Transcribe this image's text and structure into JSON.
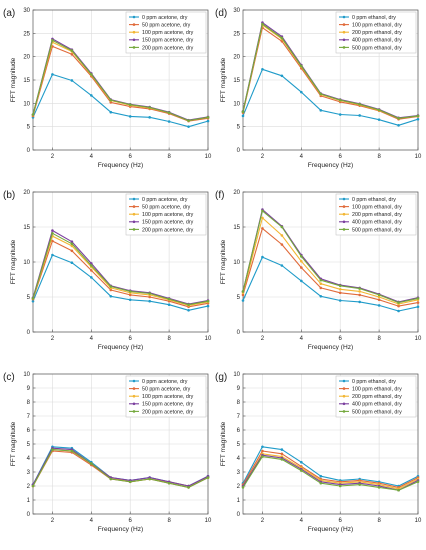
{
  "colors": {
    "s0": "#1f9bc9",
    "s1": "#e06a3a",
    "s2": "#f2b632",
    "s3": "#7b3f9e",
    "s4": "#74a83c",
    "grid": "#dcdcdc",
    "axis": "#555555"
  },
  "chart_data": [
    {
      "panel": "(a)",
      "type": "line",
      "xlabel": "Frequency (Hz)",
      "ylabel": "FFT magnitude",
      "xlim": [
        1,
        10
      ],
      "ylim": [
        0,
        30
      ],
      "xticks": [
        2,
        4,
        6,
        8,
        10
      ],
      "yticks": [
        0,
        5,
        10,
        15,
        20,
        25,
        30
      ],
      "grid": true,
      "legend": "top-right",
      "x": [
        1,
        2,
        3,
        4,
        5,
        6,
        7,
        8,
        9,
        10
      ],
      "series": [
        {
          "name": "0 ppm acetone, dry",
          "values": [
            7.0,
            16.2,
            14.9,
            11.7,
            8.1,
            7.2,
            7.0,
            6.1,
            5.0,
            6.2
          ]
        },
        {
          "name": "50 ppm acetone, dry",
          "values": [
            7.3,
            22.2,
            20.5,
            15.8,
            10.2,
            9.3,
            8.8,
            7.8,
            6.2,
            6.8
          ]
        },
        {
          "name": "100 ppm acetone, dry",
          "values": [
            7.5,
            23.1,
            21.1,
            16.1,
            10.6,
            9.6,
            9.0,
            8.0,
            6.3,
            7.0
          ]
        },
        {
          "name": "150 ppm acetone, dry",
          "values": [
            7.6,
            23.8,
            21.5,
            16.4,
            10.8,
            9.8,
            9.2,
            8.1,
            6.4,
            7.1
          ]
        },
        {
          "name": "200 ppm acetone, dry",
          "values": [
            7.6,
            23.5,
            21.3,
            16.2,
            10.7,
            9.7,
            9.1,
            8.0,
            6.3,
            7.0
          ]
        }
      ]
    },
    {
      "panel": "(d)",
      "type": "line",
      "xlabel": "Frequency (Hz)",
      "ylabel": "FFT magnitude",
      "xlim": [
        1,
        10
      ],
      "ylim": [
        0,
        30
      ],
      "xticks": [
        2,
        4,
        6,
        8,
        10
      ],
      "yticks": [
        0,
        5,
        10,
        15,
        20,
        25,
        30
      ],
      "grid": true,
      "legend": "top-right",
      "x": [
        1,
        2,
        3,
        4,
        5,
        6,
        7,
        8,
        9,
        10
      ],
      "series": [
        {
          "name": "0 ppm ethanol, dry",
          "values": [
            7.3,
            17.3,
            15.9,
            12.4,
            8.5,
            7.6,
            7.4,
            6.5,
            5.3,
            6.6
          ]
        },
        {
          "name": "100 ppm ethanol, dry",
          "values": [
            8.0,
            26.2,
            23.3,
            17.5,
            11.6,
            10.3,
            9.5,
            8.4,
            6.6,
            7.2
          ]
        },
        {
          "name": "200 ppm ethanol, dry",
          "values": [
            8.2,
            26.8,
            23.8,
            17.9,
            11.9,
            10.6,
            9.7,
            8.5,
            6.8,
            7.3
          ]
        },
        {
          "name": "400 ppm ethanol, dry",
          "values": [
            8.3,
            27.3,
            24.3,
            18.2,
            12.1,
            10.8,
            9.9,
            8.7,
            6.9,
            7.4
          ]
        },
        {
          "name": "500 ppm ethanol, dry",
          "values": [
            8.2,
            27.0,
            24.0,
            18.0,
            12.0,
            10.7,
            9.8,
            8.6,
            6.8,
            7.3
          ]
        }
      ]
    },
    {
      "panel": "(b)",
      "type": "line",
      "xlabel": "Frequency (Hz)",
      "ylabel": "FFT magnitude",
      "xlim": [
        1,
        10
      ],
      "ylim": [
        0,
        20
      ],
      "xticks": [
        2,
        4,
        6,
        8,
        10
      ],
      "yticks": [
        0,
        5,
        10,
        15,
        20
      ],
      "grid": true,
      "legend": "top-right",
      "x": [
        1,
        2,
        3,
        4,
        5,
        6,
        7,
        8,
        9,
        10
      ],
      "series": [
        {
          "name": "0 ppm acetone, dry",
          "values": [
            4.4,
            11.0,
            9.9,
            7.8,
            5.1,
            4.6,
            4.4,
            3.9,
            3.1,
            3.7
          ]
        },
        {
          "name": "50 ppm acetone, dry",
          "values": [
            4.7,
            13.0,
            11.6,
            8.8,
            6.0,
            5.3,
            5.0,
            4.4,
            3.6,
            4.1
          ]
        },
        {
          "name": "100 ppm acetone, dry",
          "values": [
            4.8,
            13.7,
            12.3,
            9.3,
            6.3,
            5.6,
            5.3,
            4.6,
            3.8,
            4.3
          ]
        },
        {
          "name": "150 ppm acetone, dry",
          "values": [
            4.9,
            14.5,
            12.9,
            9.8,
            6.6,
            5.9,
            5.6,
            4.8,
            4.0,
            4.5
          ]
        },
        {
          "name": "200 ppm acetone, dry",
          "values": [
            4.8,
            14.1,
            12.6,
            9.5,
            6.5,
            5.8,
            5.5,
            4.7,
            3.9,
            4.4
          ]
        }
      ]
    },
    {
      "panel": "(f)",
      "type": "line",
      "xlabel": "Frequency (Hz)",
      "ylabel": "FFT magnitude",
      "xlim": [
        1,
        10
      ],
      "ylim": [
        0,
        20
      ],
      "xticks": [
        2,
        4,
        6,
        8,
        10
      ],
      "yticks": [
        0,
        5,
        10,
        15,
        20
      ],
      "grid": true,
      "legend": "top-right",
      "x": [
        1,
        2,
        3,
        4,
        5,
        6,
        7,
        8,
        9,
        10
      ],
      "series": [
        {
          "name": "0 ppm ethanol, dry",
          "values": [
            4.5,
            10.7,
            9.5,
            7.3,
            5.1,
            4.5,
            4.3,
            3.8,
            3.0,
            3.6
          ]
        },
        {
          "name": "100 ppm ethanol, dry",
          "values": [
            5.3,
            14.8,
            12.5,
            9.2,
            6.3,
            5.6,
            5.3,
            4.6,
            3.7,
            4.2
          ]
        },
        {
          "name": "200 ppm ethanol, dry",
          "values": [
            5.6,
            16.3,
            13.8,
            10.1,
            6.9,
            6.1,
            5.8,
            5.0,
            4.0,
            4.6
          ]
        },
        {
          "name": "400 ppm ethanol, dry",
          "values": [
            5.8,
            17.5,
            15.1,
            11.0,
            7.6,
            6.7,
            6.3,
            5.4,
            4.3,
            4.9
          ]
        },
        {
          "name": "500 ppm ethanol, dry",
          "values": [
            5.8,
            17.3,
            15.0,
            10.8,
            7.4,
            6.6,
            6.2,
            5.3,
            4.2,
            4.8
          ]
        }
      ]
    },
    {
      "panel": "(c)",
      "type": "line",
      "xlabel": "Frequency (Hz)",
      "ylabel": "FFT magnitude",
      "xlim": [
        1,
        10
      ],
      "ylim": [
        0,
        10
      ],
      "xticks": [
        2,
        4,
        6,
        8,
        10
      ],
      "yticks": [
        0,
        1,
        2,
        3,
        4,
        5,
        6,
        7,
        8,
        9,
        10
      ],
      "grid": true,
      "legend": "top-right",
      "x": [
        1,
        2,
        3,
        4,
        5,
        6,
        7,
        8,
        9,
        10
      ],
      "series": [
        {
          "name": "0 ppm acetone, dry",
          "values": [
            2.1,
            4.8,
            4.7,
            3.7,
            2.6,
            2.4,
            2.6,
            2.3,
            2.0,
            2.7
          ]
        },
        {
          "name": "50 ppm acetone, dry",
          "values": [
            2.0,
            4.5,
            4.4,
            3.5,
            2.5,
            2.3,
            2.5,
            2.2,
            1.9,
            2.6
          ]
        },
        {
          "name": "100 ppm acetone, dry",
          "values": [
            2.0,
            4.6,
            4.5,
            3.6,
            2.6,
            2.3,
            2.5,
            2.3,
            2.0,
            2.6
          ]
        },
        {
          "name": "150 ppm acetone, dry",
          "values": [
            2.1,
            4.7,
            4.6,
            3.6,
            2.6,
            2.4,
            2.6,
            2.3,
            2.0,
            2.7
          ]
        },
        {
          "name": "200 ppm acetone, dry",
          "values": [
            2.0,
            4.6,
            4.5,
            3.6,
            2.5,
            2.3,
            2.5,
            2.2,
            1.9,
            2.6
          ]
        }
      ]
    },
    {
      "panel": "(g)",
      "type": "line",
      "xlabel": "Frequency (Hz)",
      "ylabel": "FFT magnitude",
      "xlim": [
        1,
        10
      ],
      "ylim": [
        0,
        10
      ],
      "xticks": [
        2,
        4,
        6,
        8,
        10
      ],
      "yticks": [
        0,
        1,
        2,
        3,
        4,
        5,
        6,
        7,
        8,
        9,
        10
      ],
      "grid": true,
      "legend": "top-right",
      "x": [
        1,
        2,
        3,
        4,
        5,
        6,
        7,
        8,
        9,
        10
      ],
      "series": [
        {
          "name": "0 ppm ethanol, dry",
          "values": [
            2.2,
            4.8,
            4.6,
            3.7,
            2.7,
            2.4,
            2.5,
            2.3,
            2.0,
            2.7
          ]
        },
        {
          "name": "100 ppm ethanol, dry",
          "values": [
            2.1,
            4.5,
            4.3,
            3.4,
            2.5,
            2.3,
            2.4,
            2.2,
            1.9,
            2.6
          ]
        },
        {
          "name": "200 ppm ethanol, dry",
          "values": [
            2.0,
            4.3,
            4.1,
            3.3,
            2.4,
            2.2,
            2.3,
            2.1,
            1.8,
            2.5
          ]
        },
        {
          "name": "400 ppm ethanol, dry",
          "values": [
            2.0,
            4.2,
            4.0,
            3.2,
            2.3,
            2.1,
            2.2,
            2.0,
            1.7,
            2.4
          ]
        },
        {
          "name": "500 ppm ethanol, dry",
          "values": [
            1.9,
            4.1,
            3.9,
            3.1,
            2.2,
            2.0,
            2.1,
            1.9,
            1.7,
            2.3
          ]
        }
      ]
    }
  ]
}
